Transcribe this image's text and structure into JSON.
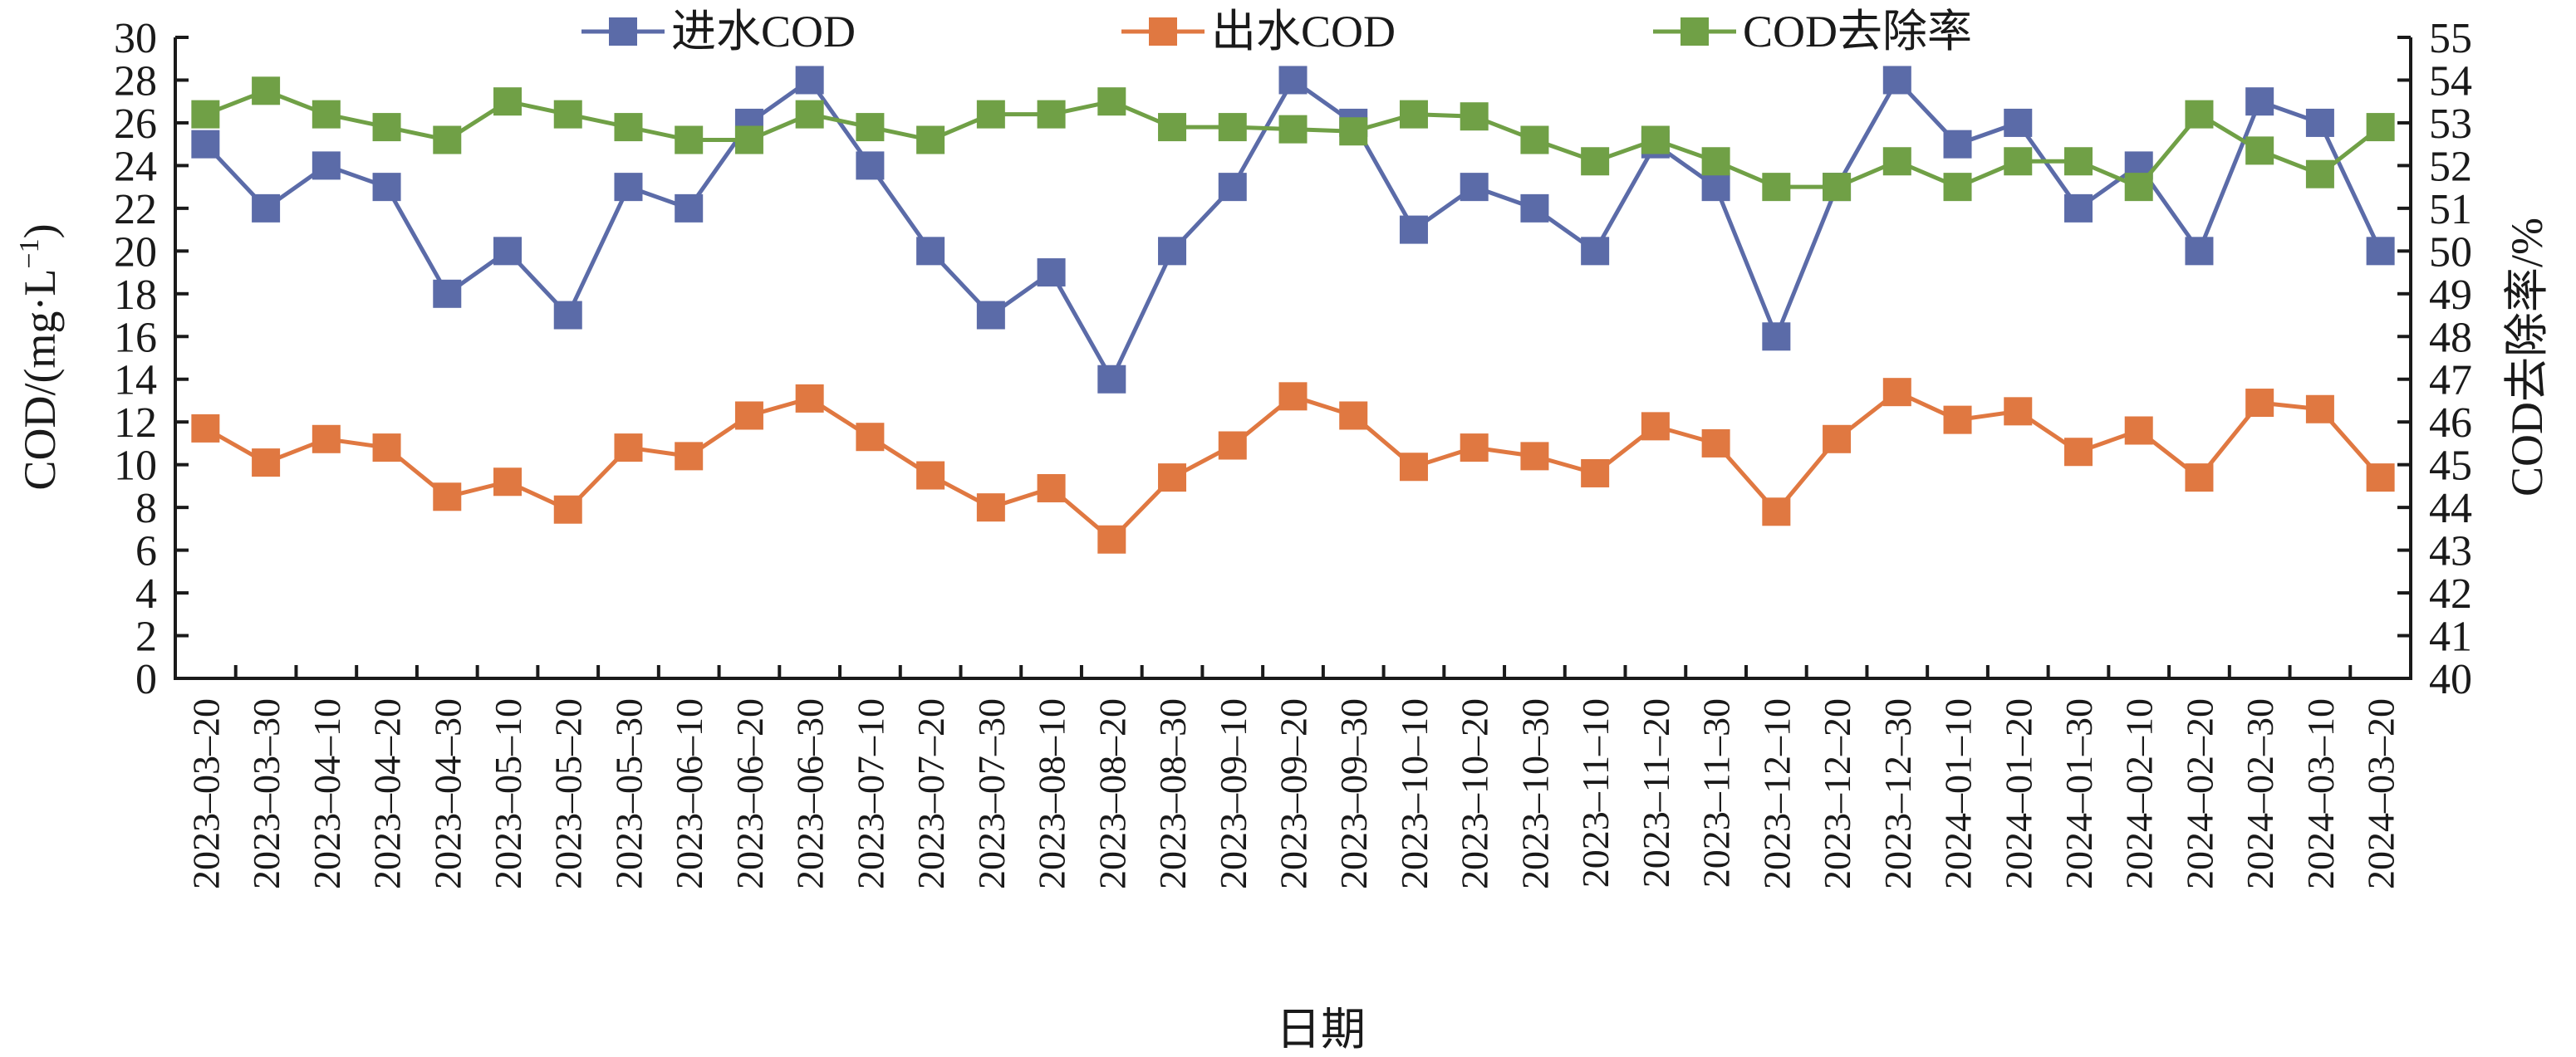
{
  "chart_data": {
    "type": "line",
    "title": "",
    "xlabel": "日期",
    "ylabel": "COD/(mg·L⁻¹)",
    "ylabel_parts": {
      "main": "COD/(mg·L",
      "sup": "−1",
      "close": ")"
    },
    "y2label": "COD去除率/%",
    "ylim": [
      0,
      30
    ],
    "y2lim": [
      40,
      55
    ],
    "yticks": [
      0,
      2,
      4,
      6,
      8,
      10,
      12,
      14,
      16,
      18,
      20,
      22,
      24,
      26,
      28,
      30
    ],
    "y2ticks": [
      40,
      41,
      42,
      43,
      44,
      45,
      46,
      47,
      48,
      49,
      50,
      51,
      52,
      53,
      54,
      55
    ],
    "grid": false,
    "legend_position": "top-center",
    "categories": [
      "2023–03–20",
      "2023–03–30",
      "2023–04–10",
      "2023–04–20",
      "2023–04–30",
      "2023–05–10",
      "2023–05–20",
      "2023–05–30",
      "2023–06–10",
      "2023–06–20",
      "2023–06–30",
      "2023–07–10",
      "2023–07–20",
      "2023–07–30",
      "2023–08–10",
      "2023–08–20",
      "2023–08–30",
      "2023–09–10",
      "2023–09–20",
      "2023–09–30",
      "2023–10–10",
      "2023–10–20",
      "2023–10–30",
      "2023–11–10",
      "2023–11–20",
      "2023–11–30",
      "2023–12–10",
      "2023–12–20",
      "2023–12–30",
      "2024–01–10",
      "2024–01–20",
      "2024–01–30",
      "2024–02–10",
      "2024–02–20",
      "2024–02–30",
      "2024–03–10",
      "2024–03–20"
    ],
    "series": [
      {
        "name": "进水COD",
        "axis": "left",
        "color": "#5B6BA8",
        "values": [
          25,
          22,
          24,
          23,
          18,
          20,
          17,
          23,
          22,
          26,
          28,
          24,
          20,
          17,
          19,
          14,
          20,
          23,
          28,
          26,
          21,
          23,
          22,
          20,
          25,
          23,
          16,
          23,
          28,
          25,
          26,
          22,
          24,
          20,
          27,
          26,
          20
        ]
      },
      {
        "name": "出水COD",
        "axis": "left",
        "color": "#E07841",
        "values": [
          11.7,
          10.1,
          11.2,
          10.8,
          8.5,
          9.2,
          7.9,
          10.8,
          10.4,
          12.3,
          13.1,
          11.3,
          9.5,
          8.0,
          8.9,
          6.5,
          9.4,
          10.9,
          13.2,
          12.3,
          9.9,
          10.8,
          10.4,
          9.6,
          11.8,
          11.0,
          7.8,
          11.2,
          13.4,
          12.1,
          12.5,
          10.6,
          11.6,
          9.4,
          12.9,
          12.6,
          9.4
        ]
      },
      {
        "name": "COD去除率",
        "axis": "right",
        "color": "#70A046",
        "values": [
          53.2,
          53.75,
          53.2,
          52.9,
          52.6,
          53.5,
          53.2,
          52.9,
          52.6,
          52.6,
          53.2,
          52.9,
          52.6,
          53.2,
          53.2,
          53.5,
          52.9,
          52.9,
          52.85,
          52.8,
          53.2,
          53.15,
          52.6,
          52.1,
          52.6,
          52.1,
          51.5,
          51.5,
          52.1,
          51.5,
          52.1,
          52.1,
          51.5,
          53.2,
          52.35,
          51.8,
          52.9
        ]
      }
    ]
  }
}
